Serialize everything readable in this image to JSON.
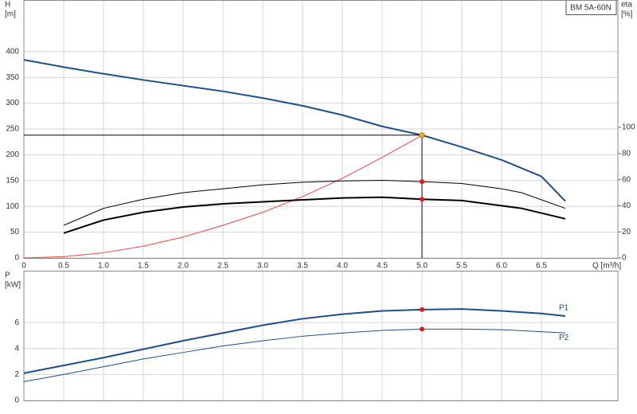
{
  "chart_data": [
    {
      "type": "line",
      "label_box": "BM 5A-60N",
      "ylabel": [
        "H",
        "[m]"
      ],
      "y2label": [
        "eta",
        "[%]"
      ],
      "xlabel": "Q [m³/h]",
      "xlim": [
        0,
        7.46
      ],
      "ylim": [
        0,
        500
      ],
      "y2lim": [
        0,
        197.6
      ],
      "xticks": [
        0,
        0.5,
        {
          "value": 1,
          "label": "1.0"
        },
        1.5,
        {
          "value": 2,
          "label": "2.0"
        },
        2.5,
        {
          "value": 3,
          "label": "3.0"
        },
        3.5,
        {
          "value": 4,
          "label": "4.0"
        },
        4.5,
        {
          "value": 5,
          "label": "5.0"
        },
        5.5,
        {
          "value": 6,
          "label": "6.0"
        },
        6.5
      ],
      "yticks": [
        0,
        50,
        100,
        150,
        200,
        250,
        300,
        350,
        400
      ],
      "y2ticks": [
        0,
        20,
        40,
        60,
        80,
        100
      ],
      "grid": true,
      "duty_x": 5.0,
      "series": [
        {
          "color": "#1f4e8c",
          "width": 2,
          "marker_color": "#ffb020",
          "duty_lines": true,
          "x": [
            0,
            0.5,
            1.0,
            1.5,
            2.0,
            2.5,
            3.0,
            3.5,
            4.0,
            4.5,
            5.0,
            5.5,
            6.0,
            6.5,
            6.8
          ],
          "values": [
            384,
            370,
            357,
            345,
            334,
            323,
            310,
            295,
            277,
            255,
            238,
            215,
            190,
            158,
            110
          ]
        },
        {
          "color": "#ff4040",
          "width": 1,
          "axis": "y2",
          "x": [
            0,
            0.5,
            1.0,
            1.5,
            2.0,
            2.5,
            3.0,
            3.5,
            4.0,
            4.5,
            5.0
          ],
          "values": [
            0,
            1,
            4,
            9,
            16,
            25,
            35,
            47,
            61,
            77,
            94
          ]
        },
        {
          "color": "#000000",
          "width": 1,
          "axis": "y2",
          "marker_color": "#ee1111",
          "x": [
            0.5,
            1.0,
            1.5,
            2.0,
            2.5,
            3.0,
            3.5,
            4.0,
            4.5,
            5.0,
            5.5,
            6.0,
            6.25,
            6.8
          ],
          "values": [
            25,
            38,
            45,
            50,
            53,
            56,
            58,
            59,
            59.5,
            58.5,
            57,
            53,
            50,
            38
          ]
        },
        {
          "color": "#000000",
          "width": 2,
          "axis": "y2",
          "marker_color": "#ee1111",
          "x": [
            0.5,
            1.0,
            1.5,
            2.0,
            2.5,
            3.0,
            3.5,
            4.0,
            4.5,
            5.0,
            5.5,
            6.0,
            6.25,
            6.8
          ],
          "values": [
            19,
            29,
            35,
            39,
            41.5,
            43,
            44.5,
            46,
            46.5,
            45,
            44,
            40,
            38,
            30
          ]
        }
      ]
    },
    {
      "type": "line",
      "ylabel": [
        "P",
        "[kW]"
      ],
      "xlim": [
        0,
        7.46
      ],
      "ylim": [
        0,
        10
      ],
      "yticks": [
        0,
        2,
        4,
        6
      ],
      "grid": true,
      "duty_x": 5.0,
      "series": [
        {
          "name": "P1",
          "color": "#1f4e8c",
          "width": 2,
          "marker_color": "#ee1111",
          "x": [
            0,
            0.5,
            1.0,
            1.5,
            2.0,
            2.5,
            3.0,
            3.5,
            4.0,
            4.5,
            5.0,
            5.5,
            6.0,
            6.5,
            6.8
          ],
          "values": [
            2.1,
            2.7,
            3.3,
            3.95,
            4.6,
            5.2,
            5.8,
            6.3,
            6.65,
            6.9,
            7.0,
            7.05,
            6.9,
            6.7,
            6.5
          ]
        },
        {
          "name": "P2",
          "color": "#1f4e8c",
          "width": 1,
          "marker_color": "#ee1111",
          "x": [
            0,
            0.5,
            1.0,
            1.5,
            2.0,
            2.5,
            3.0,
            3.5,
            4.0,
            4.5,
            5.0,
            5.5,
            6.0,
            6.5,
            6.8
          ],
          "values": [
            1.45,
            2.0,
            2.6,
            3.2,
            3.7,
            4.2,
            4.6,
            4.95,
            5.2,
            5.4,
            5.5,
            5.5,
            5.45,
            5.3,
            5.2
          ]
        }
      ]
    }
  ]
}
